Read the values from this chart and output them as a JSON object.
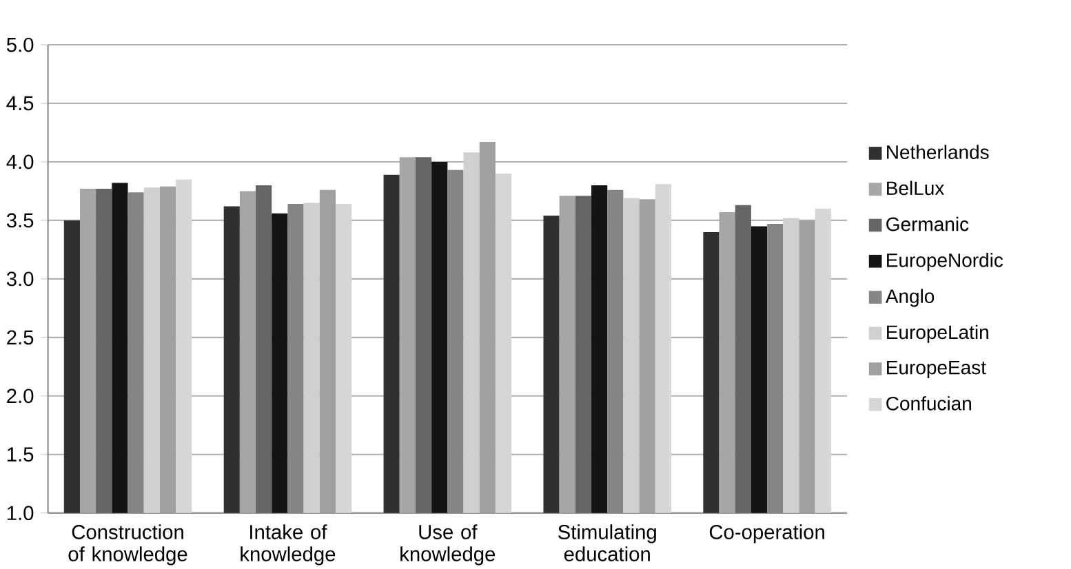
{
  "chart_data": {
    "type": "bar",
    "categories": [
      "Construction of knowledge",
      "Intake of knowledge",
      "Use of knowledge",
      "Stimulating education",
      "Co-operation"
    ],
    "series": [
      {
        "name": "Netherlands",
        "color": "#303030",
        "values": [
          3.5,
          3.62,
          3.89,
          3.54,
          3.4
        ]
      },
      {
        "name": "BelLux",
        "color": "#a6a6a6",
        "values": [
          3.77,
          3.75,
          4.04,
          3.71,
          3.57
        ]
      },
      {
        "name": "Germanic",
        "color": "#666666",
        "values": [
          3.77,
          3.8,
          4.04,
          3.71,
          3.63
        ]
      },
      {
        "name": "EuropeNordic",
        "color": "#141414",
        "values": [
          3.82,
          3.56,
          4.0,
          3.8,
          3.45
        ]
      },
      {
        "name": "Anglo",
        "color": "#858585",
        "values": [
          3.74,
          3.64,
          3.93,
          3.76,
          3.47
        ]
      },
      {
        "name": "EuropeLatin",
        "color": "#d0d0d0",
        "values": [
          3.78,
          3.65,
          4.08,
          3.69,
          3.52
        ]
      },
      {
        "name": "EuropeEast",
        "color": "#a0a0a0",
        "values": [
          3.79,
          3.76,
          4.17,
          3.68,
          3.5
        ]
      },
      {
        "name": "Confucian",
        "color": "#d6d6d6",
        "values": [
          3.85,
          3.64,
          3.9,
          3.81,
          3.6
        ]
      }
    ],
    "ylim": [
      1.0,
      5.0
    ],
    "yticks": [
      {
        "value": 1.0,
        "label": "1.0"
      },
      {
        "value": 1.5,
        "label": "1.5"
      },
      {
        "value": 2.0,
        "label": "2.0"
      },
      {
        "value": 2.5,
        "label": "2.5"
      },
      {
        "value": 3.0,
        "label": "3.0"
      },
      {
        "value": 3.5,
        "label": "3.5"
      },
      {
        "value": 4.0,
        "label": "4.0"
      },
      {
        "value": 4.5,
        "label": "4.5"
      },
      {
        "value": 5.0,
        "label": "5.0"
      }
    ],
    "grid": "y",
    "legend": "right"
  }
}
